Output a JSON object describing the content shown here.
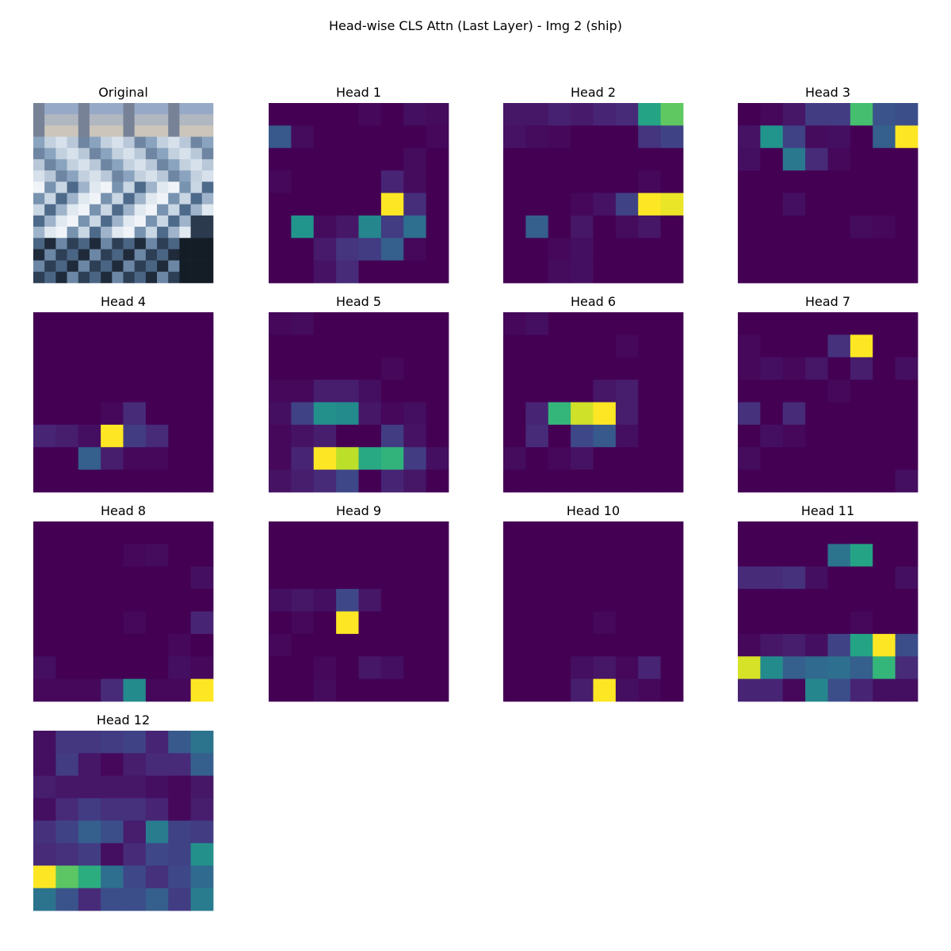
{
  "figure": {
    "title": "Head-wise CLS Attn (Last Layer) - Img 2 (ship)"
  },
  "colormap": {
    "name": "viridis",
    "stops": [
      "#440154",
      "#482878",
      "#3e4989",
      "#31688e",
      "#26828e",
      "#1f9e89",
      "#35b779",
      "#6ece58",
      "#b5de2b",
      "#fde725"
    ]
  },
  "chart_data": {
    "type": "heatmap",
    "grid": [
      8,
      8
    ],
    "value_range": [
      0,
      1
    ],
    "original": {
      "title": "Original",
      "type": "image",
      "description_colors": [
        "#1e2a3a",
        "#cfdbe8",
        "#6f8fb0",
        "#e8c9b0"
      ]
    },
    "heads": [
      {
        "title": "Head 1",
        "values": [
          [
            0.0,
            0.0,
            0.0,
            0.0,
            0.02,
            0.0,
            0.04,
            0.03
          ],
          [
            0.28,
            0.03,
            0.0,
            0.0,
            0.0,
            0.0,
            0.0,
            0.02
          ],
          [
            0.0,
            0.0,
            0.0,
            0.0,
            0.0,
            0.0,
            0.03,
            0.0
          ],
          [
            0.02,
            0.0,
            0.0,
            0.0,
            0.0,
            0.1,
            0.03,
            0.0
          ],
          [
            0.0,
            0.0,
            0.0,
            0.0,
            0.0,
            1.0,
            0.13,
            0.0
          ],
          [
            0.0,
            0.52,
            0.03,
            0.06,
            0.46,
            0.18,
            0.36,
            0.0
          ],
          [
            0.0,
            0.0,
            0.07,
            0.15,
            0.18,
            0.3,
            0.02,
            0.0
          ],
          [
            0.0,
            0.0,
            0.05,
            0.12,
            0.0,
            0.0,
            0.0,
            0.0
          ]
        ]
      },
      {
        "title": "Head 2",
        "values": [
          [
            0.06,
            0.06,
            0.09,
            0.07,
            0.1,
            0.12,
            0.58,
            0.75
          ],
          [
            0.05,
            0.03,
            0.02,
            0.0,
            0.0,
            0.0,
            0.15,
            0.2
          ],
          [
            0.0,
            0.0,
            0.0,
            0.0,
            0.0,
            0.0,
            0.0,
            0.0
          ],
          [
            0.0,
            0.0,
            0.0,
            0.0,
            0.0,
            0.0,
            0.02,
            0.0
          ],
          [
            0.0,
            0.0,
            0.0,
            0.02,
            0.05,
            0.2,
            1.0,
            0.97
          ],
          [
            0.0,
            0.3,
            0.0,
            0.06,
            0.0,
            0.03,
            0.06,
            0.0
          ],
          [
            0.0,
            0.0,
            0.02,
            0.04,
            0.0,
            0.0,
            0.0,
            0.0
          ],
          [
            0.0,
            0.0,
            0.03,
            0.04,
            0.0,
            0.0,
            0.0,
            0.0
          ]
        ]
      },
      {
        "title": "Head 3",
        "values": [
          [
            0.0,
            0.02,
            0.06,
            0.18,
            0.18,
            0.7,
            0.26,
            0.24
          ],
          [
            0.05,
            0.52,
            0.2,
            0.03,
            0.04,
            0.0,
            0.3,
            1.0
          ],
          [
            0.04,
            0.0,
            0.4,
            0.12,
            0.02,
            0.0,
            0.0,
            0.0
          ],
          [
            0.0,
            0.0,
            0.0,
            0.0,
            0.0,
            0.0,
            0.0,
            0.0
          ],
          [
            0.0,
            0.0,
            0.04,
            0.0,
            0.0,
            0.0,
            0.0,
            0.0
          ],
          [
            0.0,
            0.0,
            0.0,
            0.0,
            0.0,
            0.03,
            0.02,
            0.0
          ],
          [
            0.0,
            0.0,
            0.0,
            0.0,
            0.0,
            0.0,
            0.0,
            0.0
          ],
          [
            0.0,
            0.0,
            0.0,
            0.0,
            0.0,
            0.0,
            0.0,
            0.0
          ]
        ]
      },
      {
        "title": "Head 4",
        "values": [
          [
            0.0,
            0.0,
            0.0,
            0.0,
            0.0,
            0.0,
            0.0,
            0.0
          ],
          [
            0.0,
            0.0,
            0.0,
            0.0,
            0.0,
            0.0,
            0.0,
            0.0
          ],
          [
            0.0,
            0.0,
            0.0,
            0.0,
            0.0,
            0.0,
            0.0,
            0.0
          ],
          [
            0.0,
            0.0,
            0.0,
            0.0,
            0.0,
            0.0,
            0.0,
            0.0
          ],
          [
            0.0,
            0.0,
            0.0,
            0.02,
            0.12,
            0.0,
            0.0,
            0.0
          ],
          [
            0.1,
            0.08,
            0.04,
            1.0,
            0.18,
            0.12,
            0.0,
            0.0
          ],
          [
            0.0,
            0.0,
            0.3,
            0.08,
            0.02,
            0.02,
            0.0,
            0.0
          ],
          [
            0.0,
            0.0,
            0.0,
            0.0,
            0.0,
            0.0,
            0.0,
            0.0
          ]
        ]
      },
      {
        "title": "Head 5",
        "values": [
          [
            0.02,
            0.03,
            0.0,
            0.0,
            0.0,
            0.0,
            0.0,
            0.0
          ],
          [
            0.0,
            0.0,
            0.0,
            0.0,
            0.0,
            0.0,
            0.0,
            0.0
          ],
          [
            0.0,
            0.0,
            0.0,
            0.0,
            0.0,
            0.02,
            0.0,
            0.0
          ],
          [
            0.02,
            0.02,
            0.08,
            0.08,
            0.04,
            0.0,
            0.0,
            0.0
          ],
          [
            0.04,
            0.2,
            0.5,
            0.48,
            0.06,
            0.02,
            0.04,
            0.0
          ],
          [
            0.02,
            0.05,
            0.08,
            0.0,
            0.0,
            0.18,
            0.05,
            0.0
          ],
          [
            0.02,
            0.1,
            1.0,
            0.9,
            0.6,
            0.65,
            0.18,
            0.04
          ],
          [
            0.05,
            0.08,
            0.12,
            0.22,
            0.0,
            0.1,
            0.06,
            0.0
          ]
        ]
      },
      {
        "title": "Head 6",
        "values": [
          [
            0.02,
            0.04,
            0.0,
            0.0,
            0.0,
            0.0,
            0.0,
            0.0
          ],
          [
            0.0,
            0.0,
            0.0,
            0.0,
            0.0,
            0.02,
            0.0,
            0.0
          ],
          [
            0.0,
            0.0,
            0.0,
            0.0,
            0.0,
            0.0,
            0.0,
            0.0
          ],
          [
            0.0,
            0.0,
            0.0,
            0.0,
            0.06,
            0.08,
            0.0,
            0.0
          ],
          [
            0.0,
            0.1,
            0.66,
            0.93,
            1.0,
            0.08,
            0.0,
            0.0
          ],
          [
            0.0,
            0.12,
            0.0,
            0.22,
            0.28,
            0.04,
            0.0,
            0.0
          ],
          [
            0.03,
            0.0,
            0.02,
            0.05,
            0.0,
            0.0,
            0.0,
            0.0
          ],
          [
            0.0,
            0.0,
            0.0,
            0.0,
            0.0,
            0.0,
            0.0,
            0.0
          ]
        ]
      },
      {
        "title": "Head 7",
        "values": [
          [
            0.0,
            0.0,
            0.0,
            0.0,
            0.0,
            0.0,
            0.0,
            0.0
          ],
          [
            0.02,
            0.0,
            0.0,
            0.0,
            0.14,
            1.0,
            0.0,
            0.0
          ],
          [
            0.02,
            0.04,
            0.02,
            0.06,
            0.0,
            0.08,
            0.0,
            0.04
          ],
          [
            0.0,
            0.0,
            0.0,
            0.0,
            0.02,
            0.0,
            0.0,
            0.0
          ],
          [
            0.14,
            0.0,
            0.12,
            0.0,
            0.0,
            0.0,
            0.0,
            0.0
          ],
          [
            0.0,
            0.04,
            0.02,
            0.0,
            0.0,
            0.0,
            0.0,
            0.0
          ],
          [
            0.03,
            0.0,
            0.0,
            0.0,
            0.0,
            0.0,
            0.0,
            0.0
          ],
          [
            0.0,
            0.0,
            0.0,
            0.0,
            0.0,
            0.0,
            0.0,
            0.04
          ]
        ]
      },
      {
        "title": "Head 8",
        "values": [
          [
            0.0,
            0.0,
            0.0,
            0.0,
            0.0,
            0.0,
            0.0,
            0.0
          ],
          [
            0.0,
            0.0,
            0.0,
            0.0,
            0.02,
            0.03,
            0.0,
            0.0
          ],
          [
            0.0,
            0.0,
            0.0,
            0.0,
            0.0,
            0.0,
            0.0,
            0.04
          ],
          [
            0.0,
            0.0,
            0.0,
            0.0,
            0.0,
            0.0,
            0.0,
            0.0
          ],
          [
            0.0,
            0.0,
            0.0,
            0.0,
            0.02,
            0.0,
            0.0,
            0.1
          ],
          [
            0.0,
            0.0,
            0.0,
            0.0,
            0.0,
            0.0,
            0.02,
            0.0
          ],
          [
            0.04,
            0.0,
            0.0,
            0.0,
            0.0,
            0.0,
            0.04,
            0.02
          ],
          [
            0.02,
            0.02,
            0.02,
            0.12,
            0.48,
            0.02,
            0.02,
            1.0
          ]
        ]
      },
      {
        "title": "Head 9",
        "values": [
          [
            0.0,
            0.0,
            0.0,
            0.0,
            0.0,
            0.0,
            0.0,
            0.0
          ],
          [
            0.0,
            0.0,
            0.0,
            0.0,
            0.0,
            0.0,
            0.0,
            0.0
          ],
          [
            0.0,
            0.0,
            0.0,
            0.0,
            0.0,
            0.0,
            0.0,
            0.0
          ],
          [
            0.04,
            0.06,
            0.04,
            0.22,
            0.06,
            0.0,
            0.0,
            0.0
          ],
          [
            0.0,
            0.02,
            0.0,
            1.0,
            0.0,
            0.0,
            0.0,
            0.0
          ],
          [
            0.02,
            0.0,
            0.0,
            0.0,
            0.0,
            0.0,
            0.0,
            0.0
          ],
          [
            0.0,
            0.0,
            0.02,
            0.0,
            0.06,
            0.04,
            0.0,
            0.0
          ],
          [
            0.0,
            0.0,
            0.03,
            0.0,
            0.0,
            0.0,
            0.0,
            0.0
          ]
        ]
      },
      {
        "title": "Head 10",
        "values": [
          [
            0.0,
            0.0,
            0.0,
            0.0,
            0.0,
            0.0,
            0.0,
            0.0
          ],
          [
            0.0,
            0.0,
            0.0,
            0.0,
            0.0,
            0.0,
            0.0,
            0.0
          ],
          [
            0.0,
            0.0,
            0.0,
            0.0,
            0.0,
            0.0,
            0.0,
            0.0
          ],
          [
            0.0,
            0.0,
            0.0,
            0.0,
            0.0,
            0.0,
            0.0,
            0.0
          ],
          [
            0.0,
            0.0,
            0.0,
            0.0,
            0.02,
            0.0,
            0.0,
            0.0
          ],
          [
            0.0,
            0.0,
            0.0,
            0.0,
            0.0,
            0.0,
            0.0,
            0.0
          ],
          [
            0.0,
            0.0,
            0.0,
            0.04,
            0.06,
            0.02,
            0.1,
            0.0
          ],
          [
            0.0,
            0.0,
            0.0,
            0.08,
            1.0,
            0.04,
            0.02,
            0.0
          ]
        ]
      },
      {
        "title": "Head 11",
        "values": [
          [
            0.0,
            0.0,
            0.0,
            0.0,
            0.0,
            0.0,
            0.0,
            0.0
          ],
          [
            0.0,
            0.0,
            0.0,
            0.0,
            0.38,
            0.58,
            0.0,
            0.0
          ],
          [
            0.12,
            0.12,
            0.14,
            0.04,
            0.0,
            0.0,
            0.0,
            0.04
          ],
          [
            0.0,
            0.0,
            0.0,
            0.0,
            0.0,
            0.0,
            0.0,
            0.0
          ],
          [
            0.0,
            0.0,
            0.0,
            0.0,
            0.0,
            0.02,
            0.0,
            0.0
          ],
          [
            0.02,
            0.06,
            0.08,
            0.04,
            0.2,
            0.58,
            1.0,
            0.24
          ],
          [
            0.94,
            0.48,
            0.3,
            0.34,
            0.36,
            0.3,
            0.66,
            0.12
          ],
          [
            0.1,
            0.1,
            0.02,
            0.46,
            0.24,
            0.1,
            0.04,
            0.04
          ]
        ]
      },
      {
        "title": "Head 12",
        "values": [
          [
            0.04,
            0.16,
            0.16,
            0.18,
            0.2,
            0.1,
            0.28,
            0.38
          ],
          [
            0.04,
            0.18,
            0.06,
            0.02,
            0.08,
            0.12,
            0.12,
            0.3
          ],
          [
            0.08,
            0.06,
            0.06,
            0.06,
            0.06,
            0.04,
            0.02,
            0.06
          ],
          [
            0.04,
            0.12,
            0.18,
            0.14,
            0.14,
            0.1,
            0.02,
            0.08
          ],
          [
            0.14,
            0.2,
            0.3,
            0.24,
            0.08,
            0.42,
            0.2,
            0.18
          ],
          [
            0.12,
            0.14,
            0.18,
            0.04,
            0.12,
            0.22,
            0.2,
            0.5
          ],
          [
            1.0,
            0.74,
            0.62,
            0.36,
            0.22,
            0.14,
            0.22,
            0.34
          ],
          [
            0.38,
            0.26,
            0.12,
            0.24,
            0.24,
            0.3,
            0.18,
            0.42
          ]
        ]
      }
    ]
  }
}
